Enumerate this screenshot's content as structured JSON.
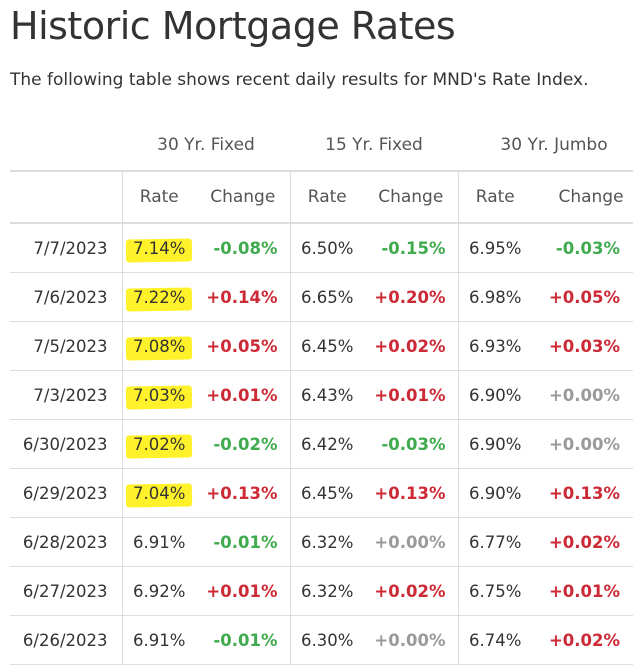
{
  "page": {
    "title": "Historic Mortgage Rates",
    "subtitle": "The following table shows recent daily results for MND's Rate Index."
  },
  "table": {
    "groups": [
      "30 Yr. Fixed",
      "15 Yr. Fixed",
      "30 Yr. Jumbo"
    ],
    "subheaders": [
      "Rate",
      "Change",
      "Rate",
      "Change",
      "Rate",
      "Change"
    ],
    "rows": [
      {
        "date": "7/7/2023",
        "r30": "7.14%",
        "c30": "-0.08%",
        "r15": "6.50%",
        "c15": "-0.15%",
        "rj": "6.95%",
        "cj": "-0.03%"
      },
      {
        "date": "7/6/2023",
        "r30": "7.22%",
        "c30": "+0.14%",
        "r15": "6.65%",
        "c15": "+0.20%",
        "rj": "6.98%",
        "cj": "+0.05%"
      },
      {
        "date": "7/5/2023",
        "r30": "7.08%",
        "c30": "+0.05%",
        "r15": "6.45%",
        "c15": "+0.02%",
        "rj": "6.93%",
        "cj": "+0.03%"
      },
      {
        "date": "7/3/2023",
        "r30": "7.03%",
        "c30": "+0.01%",
        "r15": "6.43%",
        "c15": "+0.01%",
        "rj": "6.90%",
        "cj": "+0.00%"
      },
      {
        "date": "6/30/2023",
        "r30": "7.02%",
        "c30": "-0.02%",
        "r15": "6.42%",
        "c15": "-0.03%",
        "rj": "6.90%",
        "cj": "+0.00%"
      },
      {
        "date": "6/29/2023",
        "r30": "7.04%",
        "c30": "+0.13%",
        "r15": "6.45%",
        "c15": "+0.13%",
        "rj": "6.90%",
        "cj": "+0.13%"
      },
      {
        "date": "6/28/2023",
        "r30": "6.91%",
        "c30": "-0.01%",
        "r15": "6.32%",
        "c15": "+0.00%",
        "rj": "6.77%",
        "cj": "+0.02%"
      },
      {
        "date": "6/27/2023",
        "r30": "6.92%",
        "c30": "+0.01%",
        "r15": "6.32%",
        "c15": "+0.02%",
        "rj": "6.75%",
        "cj": "+0.01%"
      },
      {
        "date": "6/26/2023",
        "r30": "6.91%",
        "c30": "-0.01%",
        "r15": "6.30%",
        "c15": "+0.00%",
        "rj": "6.74%",
        "cj": "+0.02%"
      }
    ]
  },
  "colors": {
    "increase": "#cc2a36",
    "decrease": "#3faa4e",
    "unchanged": "#9a9a9a",
    "highlight": "#fff22a"
  }
}
